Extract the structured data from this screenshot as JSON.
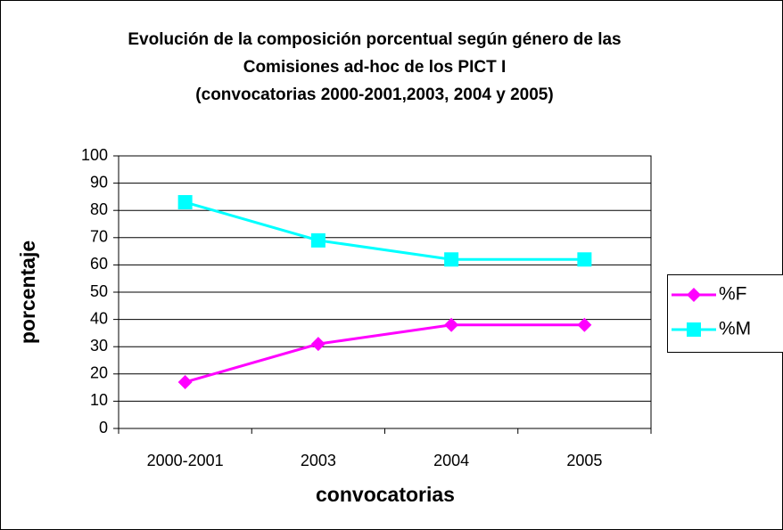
{
  "chart_data": {
    "type": "line",
    "title": [
      "Evolución de la composición porcentual según género de las",
      "Comisiones ad-hoc de los PICT I",
      "(convocatorias 2000-2001,2003, 2004 y 2005)"
    ],
    "x_label": "convocatorias",
    "y_label": "porcentaje",
    "categories": [
      "2000-2001",
      "2003",
      "2004",
      "2005"
    ],
    "series": [
      {
        "name": "%F",
        "color": "#ff00ff",
        "marker": "diamond",
        "values": [
          17,
          31,
          38,
          38
        ]
      },
      {
        "name": "%M",
        "color": "#00ffff",
        "marker": "square",
        "values": [
          83,
          69,
          62,
          62
        ]
      }
    ],
    "ylim": [
      0,
      100
    ],
    "yticks": [
      0,
      10,
      20,
      30,
      40,
      50,
      60,
      70,
      80,
      90,
      100
    ],
    "grid": true,
    "legend": "right"
  }
}
